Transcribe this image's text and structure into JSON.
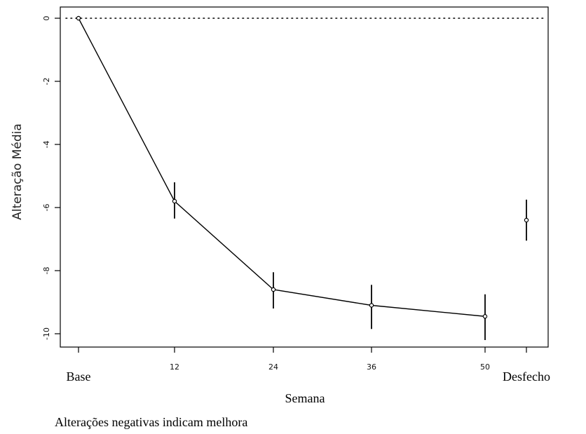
{
  "chart_data": {
    "type": "line",
    "title": "",
    "ylabel": "Alteração Média",
    "xlabel": "Semana",
    "note": "Alterações negativas indicam melhora",
    "ylim": [
      -10.4,
      0.15
    ],
    "y_ticks": [
      0,
      -2,
      -4,
      -6,
      -8,
      -10
    ],
    "y_tick_labels": [
      "0",
      "-2",
      "-4",
      "-6",
      "-8",
      "-10"
    ],
    "x_ticks": [
      0,
      12,
      24,
      36,
      50,
      55
    ],
    "x_tick_labels": [
      "",
      "12",
      "24",
      "36",
      "50",
      ""
    ],
    "x_side_labels": [
      {
        "x": 0,
        "label": "Base"
      },
      {
        "x": 55,
        "label": "Desfecho"
      }
    ],
    "reference_line": {
      "y": 0,
      "style": "dotted"
    },
    "series": [
      {
        "x": [
          0,
          12,
          24,
          36,
          50
        ],
        "y": [
          0,
          -5.8,
          -8.6,
          -9.1,
          -9.45
        ],
        "error_low": [
          0,
          -6.35,
          -9.2,
          -9.85,
          -10.2
        ],
        "error_high": [
          0,
          -5.2,
          -8.05,
          -8.45,
          -8.75
        ],
        "connected": true
      },
      {
        "x": [
          55
        ],
        "y": [
          -6.4
        ],
        "error_low": [
          -7.05
        ],
        "error_high": [
          -5.75
        ],
        "connected": false
      }
    ],
    "grid": false,
    "colors": {
      "line": "#000000",
      "axis": "#000000"
    }
  }
}
